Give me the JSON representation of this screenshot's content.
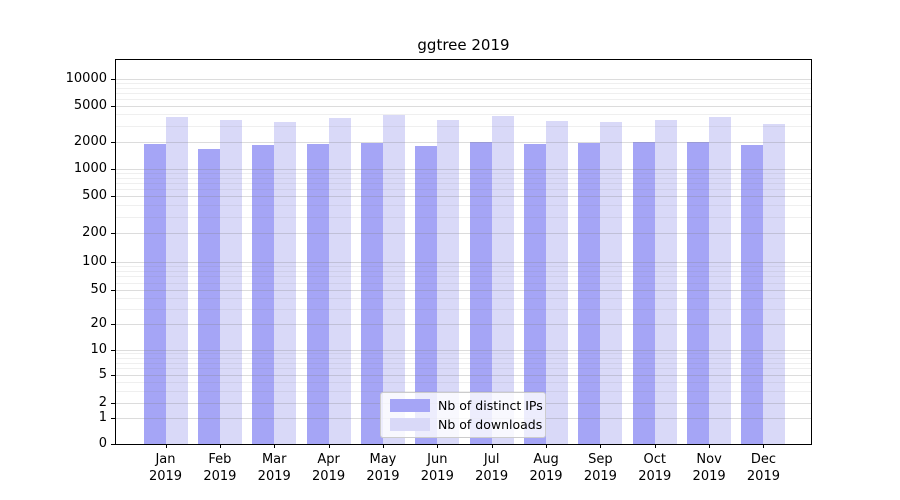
{
  "figure_title": "ggtree 2019",
  "chart_data": {
    "type": "bar",
    "title": "ggtree 2019",
    "categories": [
      "Jan 2019",
      "Feb 2019",
      "Mar 2019",
      "Apr 2019",
      "May 2019",
      "Jun 2019",
      "Jul 2019",
      "Aug 2019",
      "Sep 2019",
      "Oct 2019",
      "Nov 2019",
      "Dec 2019"
    ],
    "series": [
      {
        "name": "Nb of distinct IPs",
        "color": "#a5a5f6",
        "values": [
          1870,
          1670,
          1840,
          1870,
          1940,
          1780,
          1970,
          1890,
          1920,
          1980,
          1960,
          1810
        ]
      },
      {
        "name": "Nb of downloads",
        "color": "#d9d9f8",
        "values": [
          3700,
          3500,
          3300,
          3650,
          3950,
          3450,
          3800,
          3400,
          3300,
          3500,
          3700,
          3150
        ]
      }
    ],
    "xlabel": "",
    "ylabel": "",
    "yscale": "symlog",
    "yticks": [
      0,
      1,
      2,
      5,
      10,
      20,
      50,
      100,
      200,
      500,
      1000,
      2000,
      5000,
      10000
    ],
    "ylim": [
      0,
      16000
    ],
    "grid": true,
    "legend_position": "lower center",
    "grid_major_color": "#dcdcdc",
    "grid_minor_color": "#eeeeee",
    "spine_color": "#000000",
    "background_color": "#ffffff"
  }
}
